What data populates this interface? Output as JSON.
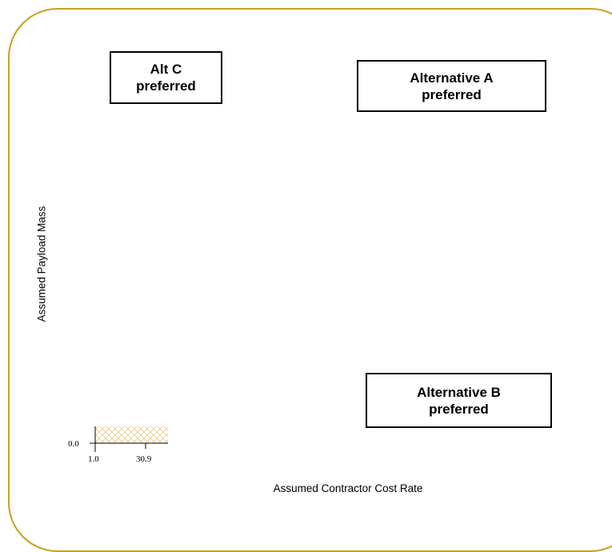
{
  "regions": {
    "alt_c": "Alt C\npreferred",
    "alt_a": "Alternative A\npreferred",
    "alt_b": "Alternative B\npreferred"
  },
  "axes": {
    "x_label": "Assumed Contractor Cost Rate",
    "y_label": "Assumed Payload Mass",
    "x_ticks": [
      "1.0",
      "30.9"
    ],
    "y_ticks": [
      "0.0"
    ]
  },
  "colors": {
    "frame": "#c9a11b",
    "hatch": "#f0c98a"
  }
}
